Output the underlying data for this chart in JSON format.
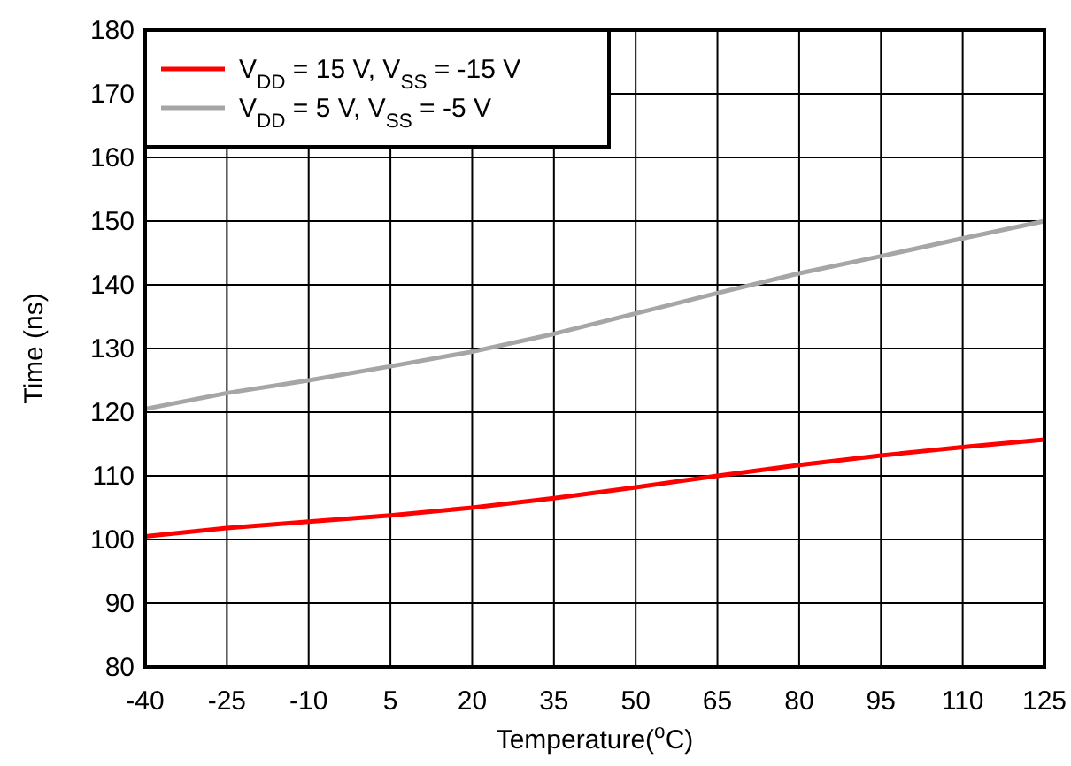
{
  "chart_data": {
    "type": "line",
    "xlabel": "Temperature($^{o}$C)",
    "ylabel": "Time (ns)",
    "x": [
      -40,
      -25,
      -10,
      5,
      20,
      35,
      50,
      65,
      80,
      95,
      110,
      125
    ],
    "series": [
      {
        "name": "V$_{DD}$ = 15 V, V$_{SS}$ = -15 V",
        "color": "#ff0000",
        "values": [
          100.5,
          101.8,
          102.8,
          103.8,
          105,
          106.5,
          108.2,
          110,
          111.7,
          113.2,
          114.5,
          115.7
        ]
      },
      {
        "name": "V$_{DD}$ = 5 V, V$_{SS}$ = -5 V",
        "color": "#a6a6a6",
        "values": [
          120.5,
          123,
          125,
          127.2,
          129.5,
          132.3,
          135.5,
          138.7,
          141.8,
          144.5,
          147.3,
          150
        ]
      }
    ],
    "xlim": [
      -40,
      125
    ],
    "xticks": [
      -40,
      -25,
      -10,
      5,
      20,
      35,
      50,
      65,
      80,
      95,
      110,
      125
    ],
    "ylim": [
      80,
      180
    ],
    "yticks": [
      80,
      90,
      100,
      110,
      120,
      130,
      140,
      150,
      160,
      170,
      180
    ],
    "grid": true,
    "legend": "top left",
    "marker": "none",
    "line_style": "solid"
  }
}
